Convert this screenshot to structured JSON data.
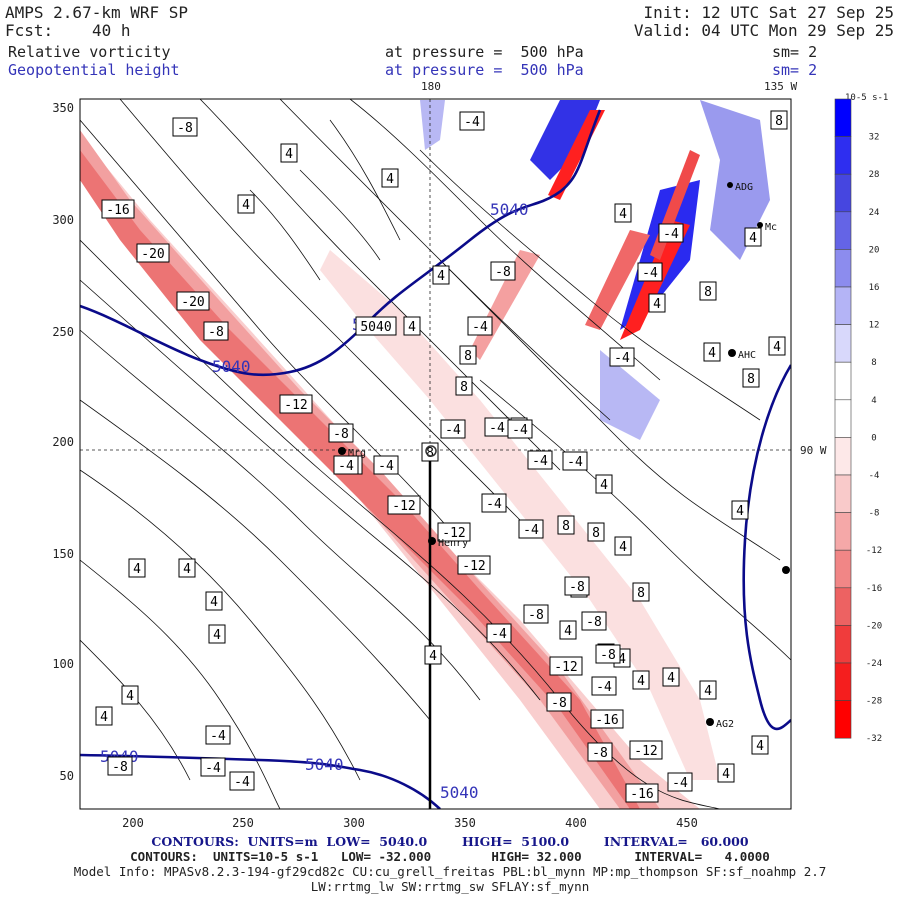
{
  "header": {
    "title": "AMPS 2.67-km WRF SP",
    "forecast_label": "Fcst:",
    "forecast_value": "40 h",
    "init": "Init: 12 UTC Sat 27 Sep 25",
    "valid": "Valid: 04 UTC Mon 29 Sep 25",
    "field1_name": "Relative vorticity",
    "field1_level": "at pressure =  500 hPa",
    "field1_smooth": "sm= 2",
    "field2_name": "Geopotential height",
    "field2_level": "at pressure =  500 hPa",
    "field2_smooth": "sm= 2"
  },
  "map": {
    "meridian_label": "180",
    "meridian2_label": "135 W",
    "parallel_label": "90 W",
    "x_ticks": [
      "200",
      "250",
      "300",
      "350",
      "400",
      "450"
    ],
    "y_ticks": [
      "350",
      "300",
      "250",
      "200",
      "150",
      "100",
      "50"
    ],
    "height_contour_label": "5040",
    "stations": [
      {
        "name": "Mrg"
      },
      {
        "name": "Henry"
      },
      {
        "name": "AHC"
      },
      {
        "name": "AG2"
      },
      {
        "name": "ADG"
      },
      {
        "name": "Mc"
      }
    ],
    "vort_labels": [
      "-8",
      "4",
      "4",
      "4",
      "-4",
      "-16",
      "-20",
      "-20",
      "-8",
      "5040",
      "4",
      "-12",
      "-8",
      "-4",
      "-4",
      "-12",
      "-12",
      "-12",
      "-8",
      "-4",
      "-12",
      "-8",
      "-16",
      "-12",
      "-8",
      "-16",
      "-4",
      "4",
      "8",
      "-4",
      "-8",
      "8",
      "-4",
      "8",
      "4",
      "8",
      "-8",
      "4",
      "-4",
      "-4",
      "8",
      "8",
      "4",
      "8",
      "4",
      "4",
      "8",
      "4",
      "8",
      "4",
      "4",
      "4",
      "4",
      "4",
      "4",
      "4",
      "4",
      "4",
      "4",
      "4",
      "4",
      "4",
      "4",
      "4",
      "-4",
      "-4",
      "-8",
      "-4",
      "-4",
      "-4",
      "-4",
      "-4",
      "-4",
      "-4",
      "4",
      "4",
      "-4",
      "-8",
      "-8",
      "-4",
      "-4",
      "4",
      "8"
    ]
  },
  "colorbar": {
    "units": "10-5 s-1",
    "levels": [
      "32",
      "28",
      "24",
      "20",
      "16",
      "12",
      "8",
      "4",
      "0",
      "-4",
      "-8",
      "-12",
      "-16",
      "-20",
      "-24",
      "-28",
      "-32"
    ],
    "colors": [
      "#0000ff",
      "#2e2ef0",
      "#4646e0",
      "#6464e6",
      "#8c8cee",
      "#b4b4f6",
      "#d8d8fb",
      "#ffffff",
      "#ffffff",
      "#fde8e8",
      "#f9caca",
      "#f5a8a8",
      "#f18686",
      "#ed6262",
      "#f03c3c",
      "#f51e1e",
      "#ff0000"
    ]
  },
  "footer": {
    "line1": "CONTOURS:  UNITS=m  LOW=  5040.0        HIGH=  5100.0        INTERVAL=   60.000",
    "line2": "CONTOURS:  UNITS=10-5 s-1   LOW= -32.000        HIGH= 32.000       INTERVAL=   4.0000",
    "line3": "Model Info: MPASv8.2.3-194-gf29cd82c CU:cu_grell_freitas PBL:bl_mynn MP:mp_thompson SF:sf_noahmp 2.7",
    "line4": "LW:rrtmg_lw SW:rrtmg_sw SFLAY:sf_mynn"
  }
}
